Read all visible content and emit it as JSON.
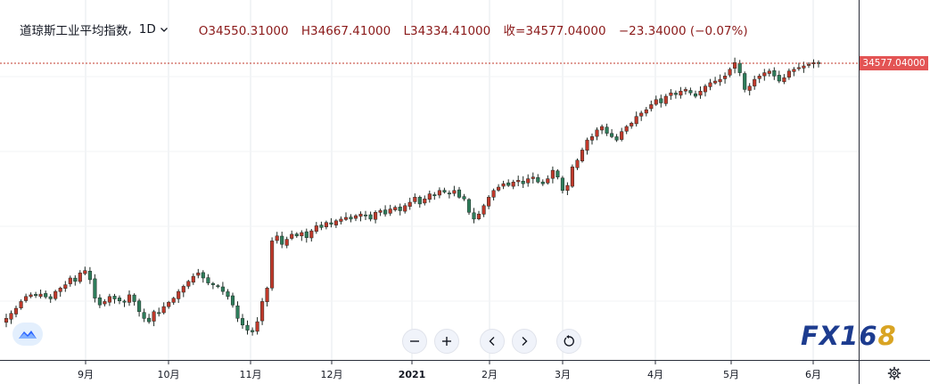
{
  "legend": {
    "symbol": "道琼斯工业平均指数",
    "separator": ",",
    "timeframe": "1D",
    "open_text": "O34550.31000",
    "high_text": "H34667.41000",
    "low_text": "L34334.41000",
    "close_text": "收=34577.04000",
    "change_text": "−23.34000 (−0.07%)"
  },
  "last_price_label": "34577.04000",
  "watermark": {
    "part1": "FX16",
    "part2": "8"
  },
  "colors": {
    "up": "#26a69a",
    "down": "#ef5350",
    "up_body": "#ffffff",
    "candle_up_fill": "#c0392b",
    "candle_down_fill": "#2e7d5b",
    "grid": "#e6e9ee",
    "axis_text": "#131722",
    "price_line": "#c0392b",
    "label_bg": "#e35454",
    "watermark_blue": "#1d3c8f",
    "watermark_gold": "#d9a423"
  },
  "icons": [
    "tradingview-logo-icon",
    "zoom-out-icon",
    "zoom-in-icon",
    "scroll-left-icon",
    "scroll-right-icon",
    "reset-icon",
    "settings-gear-icon",
    "chevron-down-icon"
  ],
  "chart_data": {
    "type": "candlestick",
    "title": "道琼斯工业平均指数",
    "timeframe": "1D",
    "x_axis_ticks": [
      "9月",
      "10月",
      "11月",
      "12月",
      "2021",
      "2月",
      "3月",
      "4月",
      "5月",
      "6月"
    ],
    "y_axis_visible_ticks": [],
    "ylim": [
      26400,
      35400
    ],
    "last_close": 34577.04,
    "series": [
      {
        "name": "",
        "segments": [
          {
            "tick": "start",
            "close": 27100
          },
          {
            "tick": "9月",
            "close": 28300
          },
          {
            "tick": "10月",
            "close": 27600
          },
          {
            "tick": "11月",
            "close": 26800
          },
          {
            "tick": "12月",
            "close": 29900
          },
          {
            "tick": "2021",
            "close": 30600
          },
          {
            "tick": "2月",
            "close": 30000
          },
          {
            "tick": "3月",
            "close": 31500
          },
          {
            "tick": "4月",
            "close": 33000
          },
          {
            "tick": "5月",
            "close": 34100
          },
          {
            "tick": "6月",
            "close": 34577
          }
        ],
        "closes": [
          27000,
          27150,
          27300,
          27500,
          27650,
          27700,
          27680,
          27720,
          27640,
          27580,
          27800,
          27900,
          28000,
          28200,
          28100,
          28350,
          28420,
          28150,
          27600,
          27400,
          27500,
          27650,
          27580,
          27520,
          27480,
          27700,
          27500,
          27200,
          27000,
          26900,
          27200,
          27150,
          27350,
          27480,
          27600,
          27800,
          27950,
          28100,
          28250,
          28350,
          28200,
          28050,
          28000,
          27950,
          27800,
          27650,
          27400,
          27000,
          26800,
          26650,
          26600,
          26900,
          27500,
          27900,
          29300,
          29450,
          29200,
          29350,
          29500,
          29450,
          29550,
          29400,
          29600,
          29750,
          29700,
          29850,
          29800,
          29900,
          29950,
          30000,
          29950,
          30050,
          30100,
          30050,
          29950,
          30150,
          30200,
          30100,
          30250,
          30300,
          30200,
          30350,
          30450,
          30600,
          30400,
          30550,
          30700,
          30650,
          30800,
          30750,
          30700,
          30800,
          30600,
          30550,
          30150,
          29950,
          30100,
          30350,
          30600,
          30800,
          30900,
          31000,
          30950,
          31050,
          31100,
          31000,
          31150,
          31200,
          31050,
          31000,
          31150,
          31400,
          31200,
          30800,
          30950,
          31500,
          31700,
          32000,
          32300,
          32400,
          32600,
          32700,
          32500,
          32400,
          32300,
          32550,
          32700,
          32800,
          33000,
          33100,
          33200,
          33350,
          33500,
          33400,
          33600,
          33700,
          33650,
          33750,
          33800,
          33700,
          33600,
          33750,
          33900,
          34000,
          34050,
          34100,
          34200,
          34400,
          34600,
          34300,
          33800,
          33900,
          34100,
          34200,
          34300,
          34350,
          34200,
          34050,
          34150,
          34350,
          34400,
          34450,
          34500,
          34550,
          34600,
          34577
        ]
      }
    ],
    "grid": "on",
    "legend_position": "top-left"
  }
}
